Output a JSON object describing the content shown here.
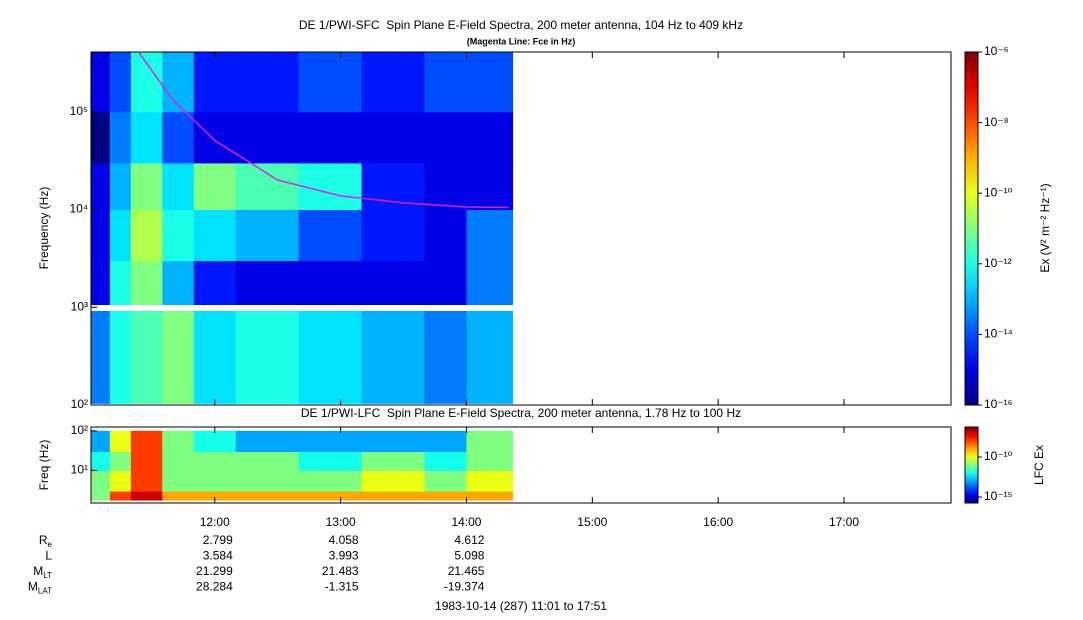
{
  "chart_data": [
    {
      "type": "spectrogram",
      "title": "DE 1/PWI-SFC  Spin Plane E-Field Spectra, 200 meter antenna, 104 Hz to 409 kHz",
      "subtitle": "(Magenta Line: Fce in Hz)",
      "ylabel": "Frequency (Hz)",
      "xlim": [
        "11:01",
        "17:51"
      ],
      "xticks": [
        "12:00",
        "13:00",
        "14:00",
        "15:00",
        "16:00",
        "17:00"
      ],
      "ylim": [
        100,
        409000
      ],
      "log_y": true,
      "yticks": [
        {
          "value": 100,
          "label": "10²"
        },
        {
          "value": 1000,
          "label": "10³"
        },
        {
          "value": 10000,
          "label": "10⁴"
        },
        {
          "value": 100000,
          "label": "10⁵"
        }
      ],
      "time_edges": [
        "11:01",
        "11:10",
        "11:20",
        "11:35",
        "11:50",
        "12:10",
        "12:40",
        "13:10",
        "13:40",
        "14:00",
        "14:22"
      ],
      "freq_edges": [
        104,
        1000,
        3000,
        10000,
        30000,
        100000,
        409000
      ],
      "values": [
        [
          3e-14,
          1e-12,
          3e-12,
          1e-11,
          3e-13,
          1e-12,
          3e-13,
          1e-13,
          3e-14,
          1e-13
        ],
        [
          1e-15,
          1e-12,
          1e-11,
          1e-13,
          3e-15,
          1e-15,
          1e-15,
          1e-15,
          1e-15,
          3e-14
        ],
        [
          1e-15,
          3e-13,
          3e-11,
          1e-12,
          3e-13,
          1e-13,
          1e-14,
          3e-15,
          1e-15,
          3e-14
        ],
        [
          1e-15,
          1e-13,
          1e-11,
          3e-13,
          1e-11,
          3e-12,
          1e-12,
          3e-15,
          1e-15,
          1e-15
        ],
        [
          1e-16,
          3e-14,
          3e-13,
          1e-14,
          1e-15,
          1e-15,
          1e-15,
          1e-15,
          1e-15,
          1e-15
        ],
        [
          1e-15,
          1e-14,
          1e-12,
          1e-13,
          3e-15,
          3e-15,
          1e-14,
          3e-15,
          1e-14,
          1e-14
        ]
      ],
      "fce": {
        "color": "#e020e0",
        "x": [
          "11:24",
          "11:40",
          "12:00",
          "12:30",
          "13:00",
          "13:30",
          "14:00",
          "14:20"
        ],
        "values": [
          400000,
          132000,
          51000,
          20000,
          13800,
          11700,
          10600,
          10500
        ]
      },
      "colormap": "jet",
      "clabel": "Ex (V² m⁻² Hz⁻¹)",
      "clim": [
        1e-16,
        1e-06
      ],
      "cticks": [
        {
          "value": 1e-06,
          "label": "10⁻⁶"
        },
        {
          "value": 1e-08,
          "label": "10⁻⁸"
        },
        {
          "value": 1e-10,
          "label": "10⁻¹⁰"
        },
        {
          "value": 1e-12,
          "label": "10⁻¹²"
        },
        {
          "value": 1e-14,
          "label": "10⁻¹⁴"
        },
        {
          "value": 1e-16,
          "label": "10⁻¹⁶"
        }
      ]
    },
    {
      "type": "spectrogram",
      "title": "DE 1/PWI-LFC  Spin Plane E-Field Spectra, 200 meter antenna, 1.78 Hz to 100 Hz",
      "ylabel": "Freq (Hz)",
      "xlim": [
        "11:01",
        "17:51"
      ],
      "xticks": [
        "12:00",
        "13:00",
        "14:00",
        "15:00",
        "16:00",
        "17:00"
      ],
      "ylim": [
        1.5,
        125
      ],
      "log_y": true,
      "yticks": [
        {
          "value": 10,
          "label": "10¹"
        },
        {
          "value": 100,
          "label": "10²"
        }
      ],
      "time_edges": [
        "11:01",
        "11:10",
        "11:20",
        "11:35",
        "11:50",
        "12:10",
        "12:40",
        "13:10",
        "13:40",
        "14:00",
        "14:22"
      ],
      "freq_edges": [
        1.78,
        3,
        10,
        30,
        100
      ],
      "values": [
        [
          1e-11,
          1e-08,
          1e-07,
          1e-09,
          1e-09,
          1e-09,
          1e-09,
          1e-09,
          1e-09,
          1e-09
        ],
        [
          1e-11,
          1e-10,
          1e-08,
          1e-11,
          1e-11,
          1e-11,
          1e-11,
          1e-10,
          1e-11,
          1e-10
        ],
        [
          1e-12,
          1e-11,
          1e-08,
          1e-11,
          1e-11,
          1e-11,
          1e-12,
          1e-11,
          1e-12,
          1e-11
        ],
        [
          1e-13,
          1e-10,
          1e-08,
          1e-11,
          1e-12,
          1e-13,
          1e-13,
          1e-13,
          1e-13,
          1e-11
        ]
      ],
      "colormap": "jet",
      "clabel": "LFC Ex",
      "clim": [
        1.8e-16,
        5.6e-07
      ],
      "cticks": [
        {
          "value": 1e-10,
          "label": "10⁻¹⁰"
        },
        {
          "value": 1e-15,
          "label": "10⁻¹⁵"
        }
      ]
    }
  ],
  "ephemeris": [
    {
      "label": "R",
      "sub": "e",
      "values": [
        2.799,
        4.058,
        4.612
      ]
    },
    {
      "label": "L",
      "values": [
        3.584,
        3.993,
        5.098
      ]
    },
    {
      "label": "M",
      "sub": "LT",
      "values": [
        21.299,
        21.483,
        21.465
      ]
    },
    {
      "label": "M",
      "sub": "LAT",
      "values": [
        28.284,
        -1.315,
        -19.374
      ]
    }
  ],
  "footer": "1983-10-14 (287) 11:01 to 17:51"
}
